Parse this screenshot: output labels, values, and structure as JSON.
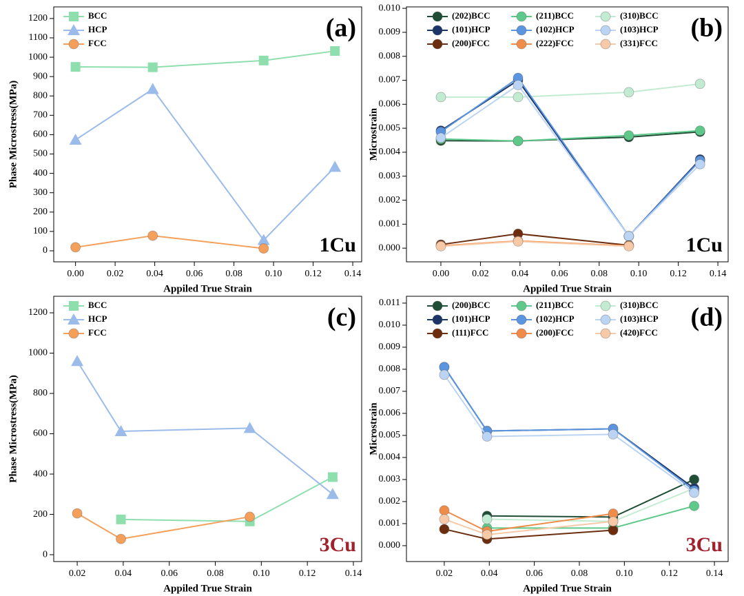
{
  "chart_data": [
    {
      "type": "line",
      "panel_label": "(a)",
      "annotation": "1Cu",
      "annotation_color": "#000000",
      "xlabel": "Appiled True Strain",
      "ylabel": "Phase Microstress(MPa)",
      "legend": "top-left",
      "legend_columns": 1,
      "xlim": [
        -0.011,
        0.1445
      ],
      "ylim": [
        -57,
        1260
      ],
      "xticks": [
        {
          "value": 0,
          "label": "0.00"
        },
        0.02,
        0.04,
        0.06,
        0.08,
        {
          "value": 0.1,
          "label": "0.10"
        },
        0.12,
        0.14
      ],
      "yticks": [
        0,
        100,
        200,
        300,
        400,
        500,
        600,
        700,
        800,
        900,
        1000,
        1100,
        1200
      ],
      "series": [
        {
          "name": "BCC",
          "color": "#8fdfae",
          "marker": "square",
          "x": [
            0,
            0.039,
            0.095,
            0.131
          ],
          "values": [
            950,
            948,
            983,
            1032
          ]
        },
        {
          "name": "HCP",
          "color": "#9bbbea",
          "marker": "triangle",
          "x": [
            0,
            0.039,
            0.095,
            0.131
          ],
          "values": [
            573,
            835,
            55,
            433
          ]
        },
        {
          "name": "FCC",
          "color": "#f5a05a",
          "marker": "circle",
          "x": [
            0,
            0.039,
            0.095
          ],
          "values": [
            18,
            78,
            12
          ]
        }
      ]
    },
    {
      "type": "line",
      "panel_label": "(b)",
      "annotation": "1Cu",
      "annotation_color": "#000000",
      "xlabel": "Appiled True Strain",
      "ylabel": "Microstrain",
      "legend": "top",
      "legend_columns": 3,
      "xlim": [
        -0.0174,
        0.1452
      ],
      "ylim": [
        -0.00057,
        0.01006
      ],
      "xticks": [
        {
          "value": 0,
          "label": "0.00"
        },
        0.02,
        0.04,
        0.06,
        0.08,
        {
          "value": 0.1,
          "label": "0.10"
        },
        0.12,
        0.14
      ],
      "yticks": [
        {
          "value": 0,
          "label": "0.000"
        },
        0.001,
        0.002,
        0.003,
        0.004,
        0.005,
        0.006,
        0.007,
        0.008,
        0.009,
        {
          "value": 0.01,
          "label": "0.010"
        }
      ],
      "series": [
        {
          "name": "(202)BCC",
          "color": "#1f4d36",
          "marker": "circle",
          "x": [
            0,
            0.039,
            0.095,
            0.131
          ],
          "values": [
            0.00448,
            0.00447,
            0.00463,
            0.00485
          ]
        },
        {
          "name": "(211)BCC",
          "color": "#5ec98a",
          "marker": "circle",
          "x": [
            0,
            0.039,
            0.095,
            0.131
          ],
          "values": [
            0.00455,
            0.00447,
            0.0047,
            0.0049
          ]
        },
        {
          "name": "(310)BCC",
          "color": "#c2ecd2",
          "marker": "circle",
          "x": [
            0,
            0.039,
            0.095,
            0.131
          ],
          "values": [
            0.0063,
            0.0063,
            0.0065,
            0.00685
          ]
        },
        {
          "name": "(101)HCP",
          "color": "#1a3566",
          "marker": "circle",
          "x": [
            0,
            0.039,
            0.095,
            0.131
          ],
          "values": [
            0.0049,
            0.007,
            0.0005,
            0.0037
          ]
        },
        {
          "name": "(102)HCP",
          "color": "#5b95e0",
          "marker": "circle",
          "x": [
            0,
            0.039,
            0.095,
            0.131
          ],
          "values": [
            0.00485,
            0.0071,
            0.0005,
            0.00365
          ]
        },
        {
          "name": "(103)HCP",
          "color": "#bcd4f4",
          "marker": "circle",
          "x": [
            0,
            0.039,
            0.095,
            0.131
          ],
          "values": [
            0.0046,
            0.0068,
            0.0005,
            0.0035
          ]
        },
        {
          "name": "(200)FCC",
          "color": "#6b2d0d",
          "marker": "circle",
          "x": [
            0,
            0.039,
            0.095
          ],
          "values": [
            0.00015,
            0.0006,
            0.00012
          ]
        },
        {
          "name": "(222)FCC",
          "color": "#f08c4a",
          "marker": "circle",
          "x": [
            0,
            0.039,
            0.095
          ],
          "values": [
            0.0001,
            0.0003,
            0.0001
          ]
        },
        {
          "name": "(331)FCC",
          "color": "#f8c9a6",
          "marker": "circle",
          "x": [
            0,
            0.039,
            0.095
          ],
          "values": [
            8e-05,
            0.00028,
            8e-05
          ]
        }
      ]
    },
    {
      "type": "line",
      "panel_label": "(c)",
      "annotation": "3Cu",
      "annotation_color": "#a0202c",
      "xlabel": "Appiled True Strain",
      "ylabel": "Phase Microstress(MPa)",
      "legend": "top-left",
      "legend_columns": 1,
      "xlim": [
        0.0098,
        0.1436
      ],
      "ylim": [
        -34,
        1282
      ],
      "xticks": [
        0.02,
        0.04,
        0.06,
        0.08,
        {
          "value": 0.1,
          "label": "0.10"
        },
        0.12,
        0.14
      ],
      "yticks": [
        0,
        200,
        400,
        600,
        800,
        1000,
        1200
      ],
      "series": [
        {
          "name": "BCC",
          "color": "#8fdfae",
          "marker": "square",
          "x": [
            0.039,
            0.095,
            0.131
          ],
          "values": [
            175,
            165,
            385
          ]
        },
        {
          "name": "HCP",
          "color": "#9bbbea",
          "marker": "triangle",
          "x": [
            0.02,
            0.039,
            0.095,
            0.131
          ],
          "values": [
            960,
            612,
            628,
            300
          ]
        },
        {
          "name": "FCC",
          "color": "#f5a05a",
          "marker": "circle",
          "x": [
            0.02,
            0.039,
            0.095
          ],
          "values": [
            205,
            78,
            188
          ]
        }
      ]
    },
    {
      "type": "line",
      "panel_label": "(d)",
      "annotation": "3Cu",
      "annotation_color": "#a0202c",
      "xlabel": "Appiled True Strain",
      "ylabel": "Microstrain",
      "legend": "top",
      "legend_columns": 3,
      "xlim": [
        0.0032,
        0.1461
      ],
      "ylim": [
        -0.00072,
        0.01131
      ],
      "xticks": [
        0.02,
        0.04,
        0.06,
        0.08,
        {
          "value": 0.1,
          "label": "0.10"
        },
        0.12,
        0.14
      ],
      "yticks": [
        {
          "value": 0,
          "label": "0.000"
        },
        0.001,
        0.002,
        0.003,
        0.004,
        0.005,
        0.006,
        0.007,
        0.008,
        0.009,
        {
          "value": 0.01,
          "label": "0.010"
        },
        0.011
      ],
      "series": [
        {
          "name": "(200)BCC",
          "color": "#1f4d36",
          "marker": "circle",
          "x": [
            0.039,
            0.095,
            0.131
          ],
          "values": [
            0.00135,
            0.0013,
            0.003
          ]
        },
        {
          "name": "(211)BCC",
          "color": "#5ec98a",
          "marker": "circle",
          "x": [
            0.039,
            0.095,
            0.131
          ],
          "values": [
            0.0008,
            0.0008,
            0.0018
          ]
        },
        {
          "name": "(310)BCC",
          "color": "#c2ecd2",
          "marker": "circle",
          "x": [
            0.039,
            0.095,
            0.131
          ],
          "values": [
            0.0012,
            0.0011,
            0.0026
          ]
        },
        {
          "name": "(101)HCP",
          "color": "#1a3566",
          "marker": "circle",
          "x": [
            0.02,
            0.039,
            0.095,
            0.131
          ],
          "values": [
            0.0081,
            0.0052,
            0.0053,
            0.0026
          ]
        },
        {
          "name": "(102)HCP",
          "color": "#5b95e0",
          "marker": "circle",
          "x": [
            0.02,
            0.039,
            0.095,
            0.131
          ],
          "values": [
            0.0081,
            0.0052,
            0.0053,
            0.0025
          ]
        },
        {
          "name": "(103)HCP",
          "color": "#bcd4f4",
          "marker": "circle",
          "x": [
            0.02,
            0.039,
            0.095,
            0.131
          ],
          "values": [
            0.00775,
            0.00495,
            0.00505,
            0.0024
          ]
        },
        {
          "name": "(111)FCC",
          "color": "#6b2d0d",
          "marker": "circle",
          "x": [
            0.02,
            0.039,
            0.095
          ],
          "values": [
            0.00075,
            0.0003,
            0.0007
          ]
        },
        {
          "name": "(200)FCC",
          "color": "#f08c4a",
          "marker": "circle",
          "x": [
            0.02,
            0.039,
            0.095
          ],
          "values": [
            0.0016,
            0.00065,
            0.00145
          ]
        },
        {
          "name": "(420)FCC",
          "color": "#f8c9a6",
          "marker": "circle",
          "x": [
            0.02,
            0.039,
            0.095
          ],
          "values": [
            0.0012,
            0.0005,
            0.0011
          ]
        }
      ]
    }
  ]
}
